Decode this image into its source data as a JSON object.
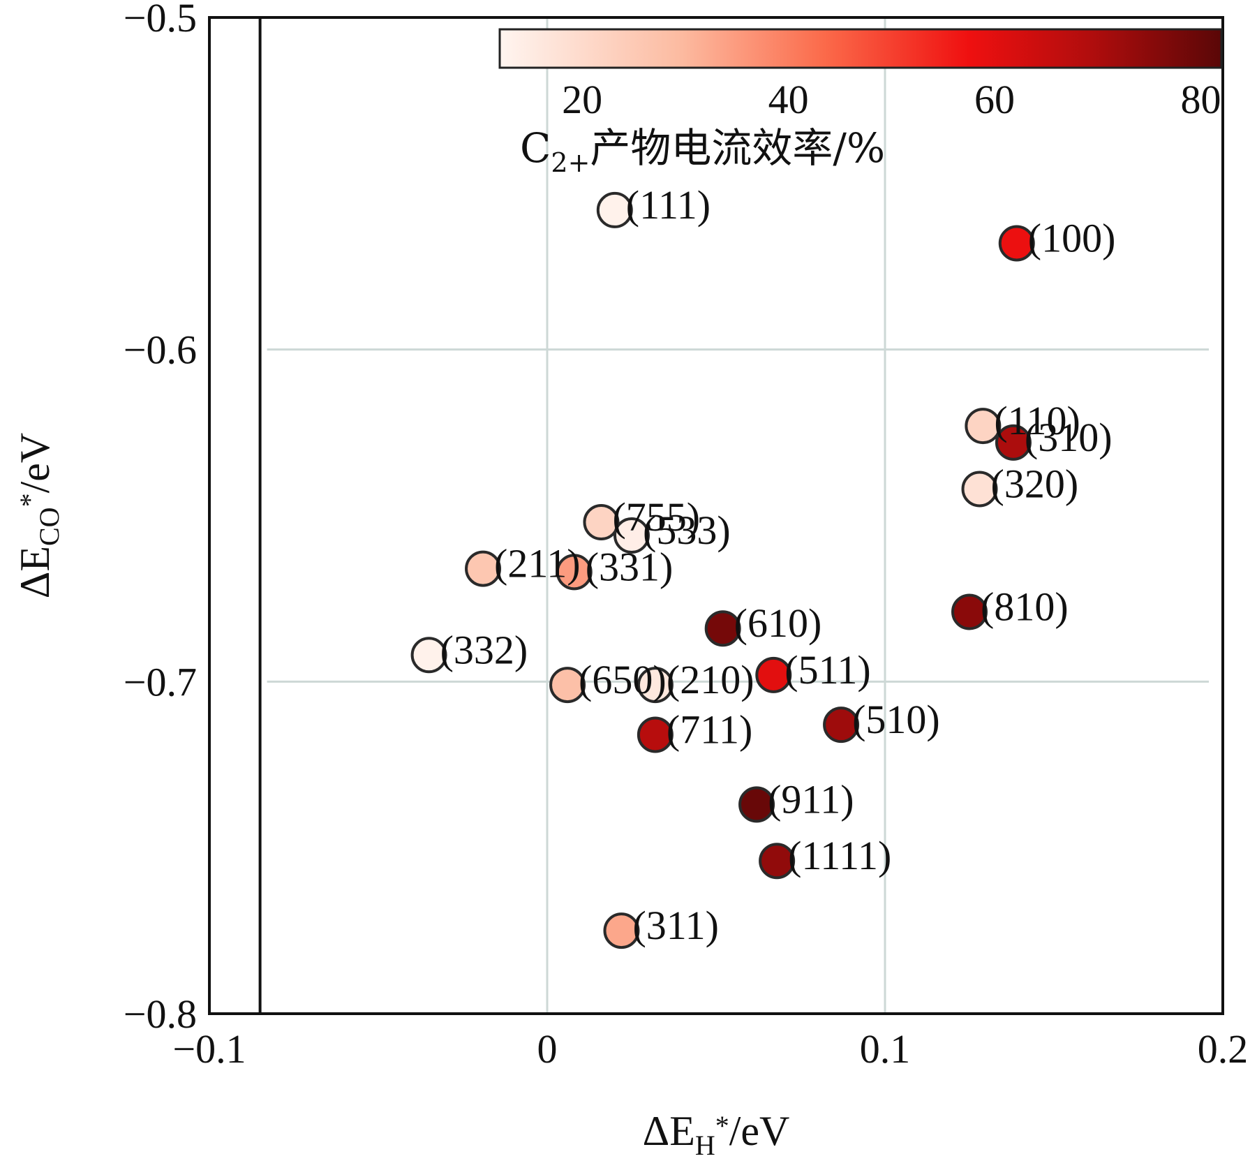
{
  "chart_data": {
    "type": "scatter",
    "xlabel": {
      "prefix": "ΔE",
      "sub": "H",
      "sup": "*",
      "suffix": "/eV"
    },
    "ylabel": {
      "prefix": "ΔE",
      "sub": "CO",
      "sup": "*",
      "suffix": "/eV"
    },
    "xlim": [
      -0.1,
      0.2
    ],
    "ylim": [
      -0.8,
      -0.5
    ],
    "xticks": [
      -0.1,
      0,
      0.1,
      0.2
    ],
    "xtick_labels": [
      "−0.1",
      "0",
      "0.1",
      "0.2"
    ],
    "yticks": [
      -0.8,
      -0.7,
      -0.6,
      -0.5
    ],
    "ytick_labels": [
      "−0.8",
      "−0.7",
      "−0.6",
      "−0.5"
    ],
    "grid": true,
    "reference_line_x": -0.085,
    "colorbar": {
      "title_prefix": "C",
      "title_sub": "2+",
      "title_suffix": "产物电流效率/%",
      "range": [
        12,
        82
      ],
      "ticks": [
        20,
        40,
        60,
        80
      ],
      "tick_labels": [
        "20",
        "40",
        "60",
        "80"
      ],
      "colormap": "Reds",
      "placement": "top-right"
    },
    "points": [
      {
        "label": "(111)",
        "x": 0.02,
        "y": -0.558,
        "value": 13
      },
      {
        "label": "(100)",
        "x": 0.139,
        "y": -0.568,
        "value": 58
      },
      {
        "label": "(110)",
        "x": 0.129,
        "y": -0.623,
        "value": 22
      },
      {
        "label": "(310)",
        "x": 0.138,
        "y": -0.628,
        "value": 70
      },
      {
        "label": "(320)",
        "x": 0.128,
        "y": -0.642,
        "value": 18
      },
      {
        "label": "(755)",
        "x": 0.016,
        "y": -0.652,
        "value": 22
      },
      {
        "label": "(533)",
        "x": 0.025,
        "y": -0.656,
        "value": 14
      },
      {
        "label": "(211)",
        "x": -0.019,
        "y": -0.666,
        "value": 26
      },
      {
        "label": "(331)",
        "x": 0.008,
        "y": -0.667,
        "value": 35
      },
      {
        "label": "(810)",
        "x": 0.125,
        "y": -0.679,
        "value": 75
      },
      {
        "label": "(610)",
        "x": 0.052,
        "y": -0.684,
        "value": 78
      },
      {
        "label": "(332)",
        "x": -0.035,
        "y": -0.692,
        "value": 13
      },
      {
        "label": "(511)",
        "x": 0.067,
        "y": -0.698,
        "value": 60
      },
      {
        "label": "(650)",
        "x": 0.006,
        "y": -0.701,
        "value": 28
      },
      {
        "label": "(210)",
        "x": 0.032,
        "y": -0.701,
        "value": 16
      },
      {
        "label": "(510)",
        "x": 0.087,
        "y": -0.713,
        "value": 72
      },
      {
        "label": "(711)",
        "x": 0.032,
        "y": -0.716,
        "value": 68
      },
      {
        "label": "(911)",
        "x": 0.062,
        "y": -0.737,
        "value": 80
      },
      {
        "label": "(1111)",
        "x": 0.068,
        "y": -0.754,
        "value": 74
      },
      {
        "label": "(311)",
        "x": 0.022,
        "y": -0.775,
        "value": 33
      }
    ]
  }
}
